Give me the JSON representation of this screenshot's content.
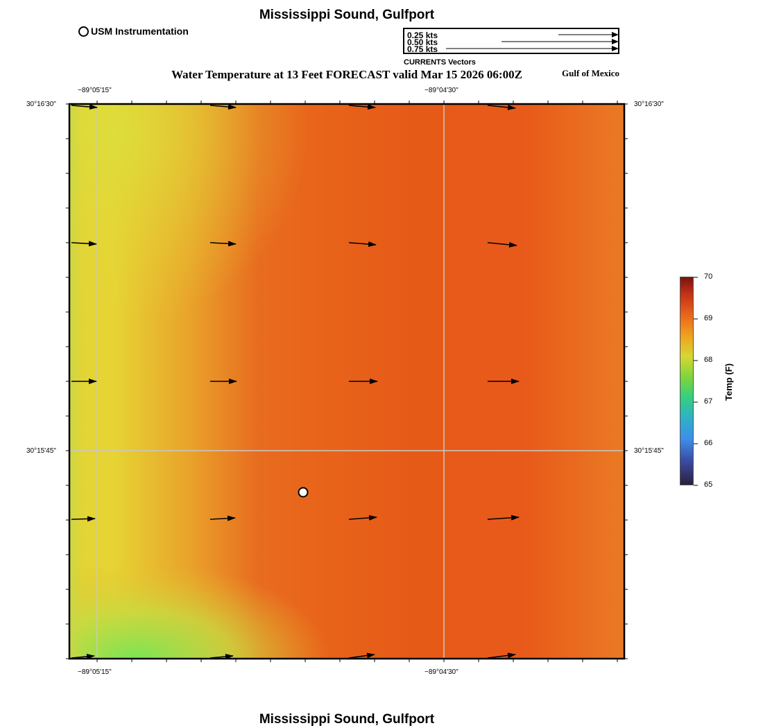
{
  "header": {
    "title": "Mississippi Sound, Gulfport",
    "subtitle": "Water Temperature at 13 Feet FORECAST valid Mar 15 2026 06:00Z",
    "region": "Gulf of Mexico",
    "usm_legend": "USM Instrumentation"
  },
  "vector_legend": {
    "labels": [
      "0.25 kts",
      "0.50 kts",
      "0.75 kts"
    ],
    "caption": "CURRENTS Vectors"
  },
  "footer": {
    "title": "Mississippi Sound, Gulfport"
  },
  "axes": {
    "lon_ticks": [
      "−89°05'15\"",
      "−89°04'30\""
    ],
    "lat_ticks": [
      "30°16'30\"",
      "30°15'45\""
    ]
  },
  "colorbar": {
    "title": "Temp (F)",
    "ticks": [
      "70",
      "69",
      "68",
      "67",
      "66",
      "65"
    ],
    "min": 65,
    "max": 70
  },
  "map": {
    "station_marker": "usm-instrument-station",
    "current_arrows_count": 20
  }
}
